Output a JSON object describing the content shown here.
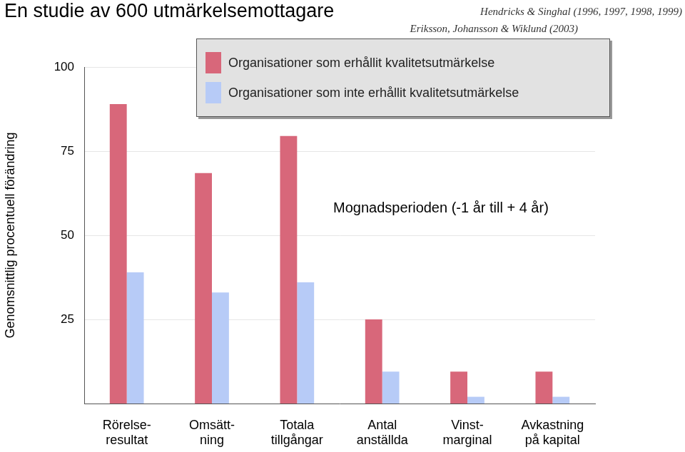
{
  "chart_data": {
    "type": "bar",
    "title": "En studie av 600 utmärkelsemottagare",
    "source": [
      "Hendricks & Singhal (1996, 1997, 1998, 1999)",
      "Eriksson, Johansson & Wiklund (2003)"
    ],
    "annotation": "Mognadsperioden (-1 år till + 4 år)",
    "y_label": "Genomsnittlig procentuell förändring",
    "categories": [
      [
        "Rörelse-",
        "resultat"
      ],
      [
        "Omsätt-",
        "ning"
      ],
      [
        "Totala",
        "tillgångar"
      ],
      [
        "Antal",
        "anställda"
      ],
      [
        "Vinst-",
        "marginal"
      ],
      [
        "Avkastning",
        "på kapital"
      ]
    ],
    "series": [
      {
        "name": "Organisationer som erhållit kvalitetsutmärkelse",
        "color": "#d8677a",
        "values": [
          89,
          68.5,
          79.5,
          25,
          9.5,
          9.5
        ]
      },
      {
        "name": "Organisationer som inte erhållit kvalitetsutmärkelse",
        "color": "#b7cbf7",
        "values": [
          39,
          33,
          36,
          9.5,
          2,
          2
        ]
      }
    ],
    "ylim": [
      0,
      100
    ],
    "yticks": [
      25,
      50,
      75,
      100
    ],
    "grid": true,
    "legend": "top-right"
  }
}
